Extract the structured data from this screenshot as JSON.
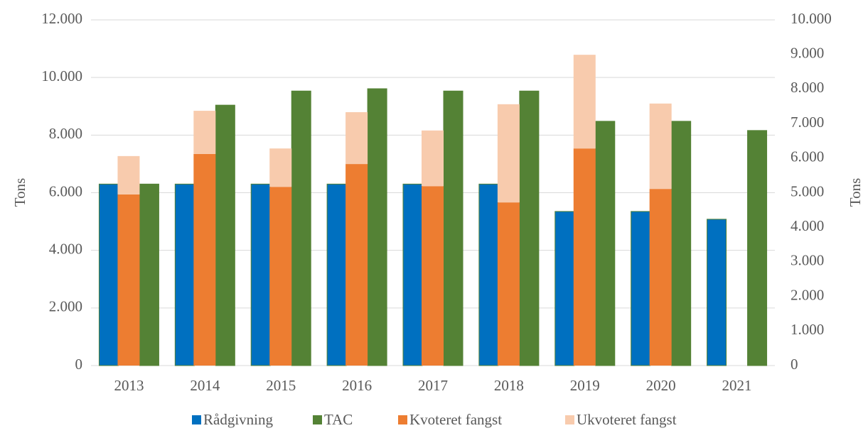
{
  "chart_data": {
    "type": "bar",
    "categories": [
      "2013",
      "2014",
      "2015",
      "2016",
      "2017",
      "2018",
      "2019",
      "2020",
      "2021"
    ],
    "series": [
      {
        "name": "Rådgivning",
        "color": "#0070c0",
        "values": [
          6300,
          6300,
          6300,
          6300,
          6300,
          6300,
          5350,
          5350,
          5080
        ]
      },
      {
        "name": "TAC",
        "color": "#548235",
        "values": [
          6300,
          9040,
          9530,
          9610,
          9530,
          9530,
          8480,
          8480,
          8160
        ]
      },
      {
        "name": "Kvoteret fangst",
        "color": "#ed7d31",
        "axis": "y2",
        "stack": true,
        "values": [
          4950,
          6120,
          5170,
          5830,
          5190,
          4720,
          6280,
          5110,
          null
        ]
      },
      {
        "name": "Ukvoteret fangst",
        "color": "#f8cbad",
        "axis": "y2",
        "stack": true,
        "values": [
          1110,
          1250,
          1110,
          1500,
          1610,
          2840,
          2710,
          2470,
          null
        ]
      }
    ],
    "ylabel": "Tons",
    "y2label": "Tons",
    "ylim": [
      0,
      12000
    ],
    "yticks": [
      0,
      {
        "value": 2000,
        "label": "2.000"
      },
      {
        "value": 4000,
        "label": "4.000"
      },
      {
        "value": 6000,
        "label": "6.000"
      },
      {
        "value": 8000,
        "label": "8.000"
      },
      {
        "value": 10000,
        "label": "10.000"
      },
      {
        "value": 12000,
        "label": "12.000"
      }
    ],
    "y2lim": [
      0,
      10000
    ],
    "y2ticks": [
      0,
      {
        "value": 1000,
        "label": "1.000"
      },
      {
        "value": 2000,
        "label": "2.000"
      },
      {
        "value": 3000,
        "label": "3.000"
      },
      {
        "value": 4000,
        "label": "4.000"
      },
      {
        "value": 5000,
        "label": "5.000"
      },
      {
        "value": 6000,
        "label": "6.000"
      },
      {
        "value": 7000,
        "label": "7.000"
      },
      {
        "value": 8000,
        "label": "8.000"
      },
      {
        "value": 9000,
        "label": "9.000"
      },
      {
        "value": 10000,
        "label": "10.000"
      }
    ],
    "grid": true,
    "legend": "bottom"
  }
}
